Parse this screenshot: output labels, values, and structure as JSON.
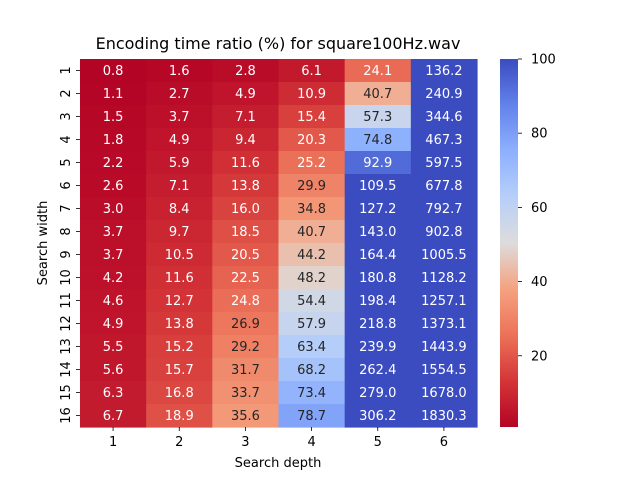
{
  "chart_data": {
    "type": "heatmap",
    "title": "Encoding time ratio (%) for square100Hz.wav",
    "xlabel": "Search depth",
    "ylabel": "Search width",
    "x_categories": [
      "1",
      "2",
      "3",
      "4",
      "5",
      "6"
    ],
    "y_categories": [
      "1",
      "2",
      "3",
      "4",
      "5",
      "6",
      "7",
      "8",
      "9",
      "10",
      "11",
      "12",
      "13",
      "14",
      "15",
      "16"
    ],
    "values": [
      [
        0.8,
        1.6,
        2.8,
        6.1,
        24.1,
        136.2
      ],
      [
        1.1,
        2.7,
        4.9,
        10.9,
        40.7,
        240.9
      ],
      [
        1.5,
        3.7,
        7.1,
        15.4,
        57.3,
        344.6
      ],
      [
        1.8,
        4.9,
        9.4,
        20.3,
        74.8,
        467.3
      ],
      [
        2.2,
        5.9,
        11.6,
        25.2,
        92.9,
        597.5
      ],
      [
        2.6,
        7.1,
        13.8,
        29.9,
        109.5,
        677.8
      ],
      [
        3.0,
        8.4,
        16.0,
        34.8,
        127.2,
        792.7
      ],
      [
        3.7,
        9.7,
        18.5,
        40.7,
        143.0,
        902.8
      ],
      [
        3.7,
        10.5,
        20.5,
        44.2,
        164.4,
        1005.5
      ],
      [
        4.2,
        11.6,
        22.5,
        48.2,
        180.8,
        1128.2
      ],
      [
        4.6,
        12.7,
        24.8,
        54.4,
        198.4,
        1257.1
      ],
      [
        4.9,
        13.8,
        26.9,
        57.9,
        218.8,
        1373.1
      ],
      [
        5.5,
        15.2,
        29.2,
        63.4,
        239.9,
        1443.9
      ],
      [
        5.6,
        15.7,
        31.7,
        68.2,
        262.4,
        1554.5
      ],
      [
        6.3,
        16.8,
        33.7,
        73.4,
        279.0,
        1678.0
      ],
      [
        6.7,
        18.9,
        35.6,
        78.7,
        306.2,
        1830.3
      ]
    ],
    "value_format": "1 decimal",
    "colormap": "coolwarm_r",
    "color_range": [
      0.8,
      100
    ],
    "colorbar": {
      "ticks": [
        20,
        40,
        60,
        80,
        100
      ]
    },
    "grid": false
  }
}
